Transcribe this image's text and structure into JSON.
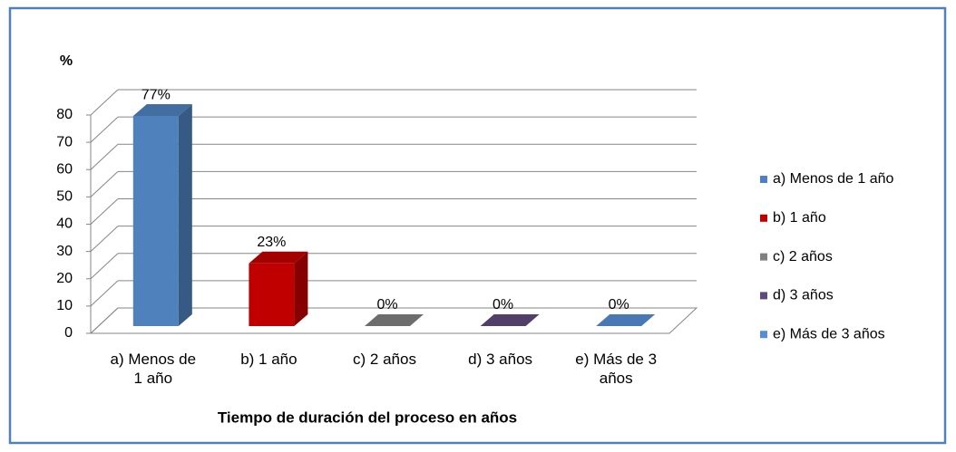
{
  "chart_data": {
    "type": "bar3d",
    "y_label": "%",
    "x_label": "Tiempo de duración del proceso en años",
    "categories": [
      "a) Menos de 1 año",
      "b) 1 año",
      "c) 2 años",
      "d) 3 años",
      "e) Más de 3 años"
    ],
    "values": [
      77,
      23,
      0,
      0,
      0
    ],
    "value_labels": [
      "77%",
      "23%",
      "0%",
      "0%",
      "0%"
    ],
    "colors": [
      "#4f81bd",
      "#c00000",
      "#808080",
      "#604a7b",
      "#558ed5"
    ],
    "ylim": [
      0,
      80
    ],
    "yticks": [
      0,
      10,
      20,
      30,
      40,
      50,
      60,
      70,
      80
    ],
    "grid": true,
    "legend": "right"
  }
}
